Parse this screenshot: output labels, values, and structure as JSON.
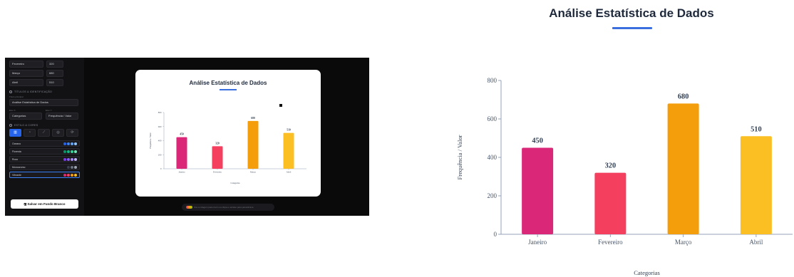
{
  "sidebar": {
    "rows": [
      {
        "name": "Fevereiro",
        "value": "320"
      },
      {
        "name": "Março",
        "value": "680"
      },
      {
        "name": "Abril",
        "value": "510"
      }
    ],
    "sec_titles": "Títulos & Identificação",
    "title_label": "Título principal",
    "title_value": "Análise Estatística de Dados",
    "x_label": "Eixo X",
    "x_value": "Categorias",
    "y_label": "Eixo Y",
    "y_value": "Frequência / Valor",
    "sec_style": "Estilo & Cores",
    "chart_type_icons": [
      "bar-chart-icon",
      "pie-chart-icon",
      "line-chart-icon",
      "donut-chart-icon",
      "radar-chart-icon"
    ],
    "themes": [
      {
        "name": "Oceano",
        "colors": [
          "#2563eb",
          "#3b82f6",
          "#60a5fa",
          "#93c5fd"
        ]
      },
      {
        "name": "Floresta",
        "colors": [
          "#059669",
          "#10b981",
          "#34d399",
          "#6ee7b7"
        ]
      },
      {
        "name": "Roxo",
        "colors": [
          "#7c3aed",
          "#8b5cf6",
          "#a78bfa",
          "#c4b5fd"
        ]
      },
      {
        "name": "Monocromo",
        "colors": [
          "#374151",
          "#6b7280",
          "#9ca3af"
        ]
      },
      {
        "name": "Vibrante",
        "colors": [
          "#db2777",
          "#f43f5e",
          "#f59e0b",
          "#fbbf24"
        ]
      }
    ],
    "active_theme": 4,
    "save_button": "Salvar em Fundo Branco"
  },
  "hint": "Use a rolagem para zoom ou clique e arraste para panorâmica",
  "chart_data": {
    "type": "bar",
    "title": "Análise Estatística de Dados",
    "xlabel": "Categorias",
    "ylabel": "Frequência / Valor",
    "categories": [
      "Janeiro",
      "Fevereiro",
      "Março",
      "Abril"
    ],
    "values": [
      450,
      320,
      680,
      510
    ],
    "colors": [
      "#db2777",
      "#f43f5e",
      "#f59e0b",
      "#fbbf24"
    ],
    "ylim": [
      0,
      800
    ],
    "yticks": [
      0,
      200,
      400,
      600,
      800
    ],
    "grid": false
  }
}
